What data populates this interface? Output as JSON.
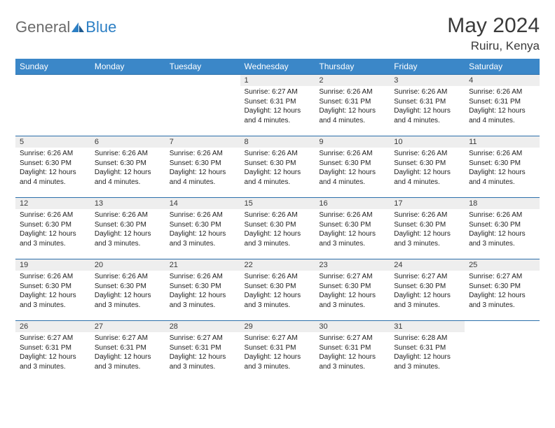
{
  "logo": {
    "text1": "General",
    "text2": "Blue"
  },
  "header": {
    "title": "May 2024",
    "location": "Ruiru, Kenya"
  },
  "colors": {
    "header_bg": "#3b87c8",
    "header_text": "#ffffff",
    "daynum_bg": "#eeeeee",
    "row_border": "#2b6faa",
    "logo_gray": "#6b6b6b",
    "logo_blue": "#2c7fc4"
  },
  "weekdays": [
    "Sunday",
    "Monday",
    "Tuesday",
    "Wednesday",
    "Thursday",
    "Friday",
    "Saturday"
  ],
  "weeks": [
    [
      {
        "day": "",
        "sunrise": "",
        "sunset": "",
        "daylight1": "",
        "daylight2": ""
      },
      {
        "day": "",
        "sunrise": "",
        "sunset": "",
        "daylight1": "",
        "daylight2": ""
      },
      {
        "day": "",
        "sunrise": "",
        "sunset": "",
        "daylight1": "",
        "daylight2": ""
      },
      {
        "day": "1",
        "sunrise": "Sunrise: 6:27 AM",
        "sunset": "Sunset: 6:31 PM",
        "daylight1": "Daylight: 12 hours",
        "daylight2": "and 4 minutes."
      },
      {
        "day": "2",
        "sunrise": "Sunrise: 6:26 AM",
        "sunset": "Sunset: 6:31 PM",
        "daylight1": "Daylight: 12 hours",
        "daylight2": "and 4 minutes."
      },
      {
        "day": "3",
        "sunrise": "Sunrise: 6:26 AM",
        "sunset": "Sunset: 6:31 PM",
        "daylight1": "Daylight: 12 hours",
        "daylight2": "and 4 minutes."
      },
      {
        "day": "4",
        "sunrise": "Sunrise: 6:26 AM",
        "sunset": "Sunset: 6:31 PM",
        "daylight1": "Daylight: 12 hours",
        "daylight2": "and 4 minutes."
      }
    ],
    [
      {
        "day": "5",
        "sunrise": "Sunrise: 6:26 AM",
        "sunset": "Sunset: 6:30 PM",
        "daylight1": "Daylight: 12 hours",
        "daylight2": "and 4 minutes."
      },
      {
        "day": "6",
        "sunrise": "Sunrise: 6:26 AM",
        "sunset": "Sunset: 6:30 PM",
        "daylight1": "Daylight: 12 hours",
        "daylight2": "and 4 minutes."
      },
      {
        "day": "7",
        "sunrise": "Sunrise: 6:26 AM",
        "sunset": "Sunset: 6:30 PM",
        "daylight1": "Daylight: 12 hours",
        "daylight2": "and 4 minutes."
      },
      {
        "day": "8",
        "sunrise": "Sunrise: 6:26 AM",
        "sunset": "Sunset: 6:30 PM",
        "daylight1": "Daylight: 12 hours",
        "daylight2": "and 4 minutes."
      },
      {
        "day": "9",
        "sunrise": "Sunrise: 6:26 AM",
        "sunset": "Sunset: 6:30 PM",
        "daylight1": "Daylight: 12 hours",
        "daylight2": "and 4 minutes."
      },
      {
        "day": "10",
        "sunrise": "Sunrise: 6:26 AM",
        "sunset": "Sunset: 6:30 PM",
        "daylight1": "Daylight: 12 hours",
        "daylight2": "and 4 minutes."
      },
      {
        "day": "11",
        "sunrise": "Sunrise: 6:26 AM",
        "sunset": "Sunset: 6:30 PM",
        "daylight1": "Daylight: 12 hours",
        "daylight2": "and 4 minutes."
      }
    ],
    [
      {
        "day": "12",
        "sunrise": "Sunrise: 6:26 AM",
        "sunset": "Sunset: 6:30 PM",
        "daylight1": "Daylight: 12 hours",
        "daylight2": "and 3 minutes."
      },
      {
        "day": "13",
        "sunrise": "Sunrise: 6:26 AM",
        "sunset": "Sunset: 6:30 PM",
        "daylight1": "Daylight: 12 hours",
        "daylight2": "and 3 minutes."
      },
      {
        "day": "14",
        "sunrise": "Sunrise: 6:26 AM",
        "sunset": "Sunset: 6:30 PM",
        "daylight1": "Daylight: 12 hours",
        "daylight2": "and 3 minutes."
      },
      {
        "day": "15",
        "sunrise": "Sunrise: 6:26 AM",
        "sunset": "Sunset: 6:30 PM",
        "daylight1": "Daylight: 12 hours",
        "daylight2": "and 3 minutes."
      },
      {
        "day": "16",
        "sunrise": "Sunrise: 6:26 AM",
        "sunset": "Sunset: 6:30 PM",
        "daylight1": "Daylight: 12 hours",
        "daylight2": "and 3 minutes."
      },
      {
        "day": "17",
        "sunrise": "Sunrise: 6:26 AM",
        "sunset": "Sunset: 6:30 PM",
        "daylight1": "Daylight: 12 hours",
        "daylight2": "and 3 minutes."
      },
      {
        "day": "18",
        "sunrise": "Sunrise: 6:26 AM",
        "sunset": "Sunset: 6:30 PM",
        "daylight1": "Daylight: 12 hours",
        "daylight2": "and 3 minutes."
      }
    ],
    [
      {
        "day": "19",
        "sunrise": "Sunrise: 6:26 AM",
        "sunset": "Sunset: 6:30 PM",
        "daylight1": "Daylight: 12 hours",
        "daylight2": "and 3 minutes."
      },
      {
        "day": "20",
        "sunrise": "Sunrise: 6:26 AM",
        "sunset": "Sunset: 6:30 PM",
        "daylight1": "Daylight: 12 hours",
        "daylight2": "and 3 minutes."
      },
      {
        "day": "21",
        "sunrise": "Sunrise: 6:26 AM",
        "sunset": "Sunset: 6:30 PM",
        "daylight1": "Daylight: 12 hours",
        "daylight2": "and 3 minutes."
      },
      {
        "day": "22",
        "sunrise": "Sunrise: 6:26 AM",
        "sunset": "Sunset: 6:30 PM",
        "daylight1": "Daylight: 12 hours",
        "daylight2": "and 3 minutes."
      },
      {
        "day": "23",
        "sunrise": "Sunrise: 6:27 AM",
        "sunset": "Sunset: 6:30 PM",
        "daylight1": "Daylight: 12 hours",
        "daylight2": "and 3 minutes."
      },
      {
        "day": "24",
        "sunrise": "Sunrise: 6:27 AM",
        "sunset": "Sunset: 6:30 PM",
        "daylight1": "Daylight: 12 hours",
        "daylight2": "and 3 minutes."
      },
      {
        "day": "25",
        "sunrise": "Sunrise: 6:27 AM",
        "sunset": "Sunset: 6:30 PM",
        "daylight1": "Daylight: 12 hours",
        "daylight2": "and 3 minutes."
      }
    ],
    [
      {
        "day": "26",
        "sunrise": "Sunrise: 6:27 AM",
        "sunset": "Sunset: 6:31 PM",
        "daylight1": "Daylight: 12 hours",
        "daylight2": "and 3 minutes."
      },
      {
        "day": "27",
        "sunrise": "Sunrise: 6:27 AM",
        "sunset": "Sunset: 6:31 PM",
        "daylight1": "Daylight: 12 hours",
        "daylight2": "and 3 minutes."
      },
      {
        "day": "28",
        "sunrise": "Sunrise: 6:27 AM",
        "sunset": "Sunset: 6:31 PM",
        "daylight1": "Daylight: 12 hours",
        "daylight2": "and 3 minutes."
      },
      {
        "day": "29",
        "sunrise": "Sunrise: 6:27 AM",
        "sunset": "Sunset: 6:31 PM",
        "daylight1": "Daylight: 12 hours",
        "daylight2": "and 3 minutes."
      },
      {
        "day": "30",
        "sunrise": "Sunrise: 6:27 AM",
        "sunset": "Sunset: 6:31 PM",
        "daylight1": "Daylight: 12 hours",
        "daylight2": "and 3 minutes."
      },
      {
        "day": "31",
        "sunrise": "Sunrise: 6:28 AM",
        "sunset": "Sunset: 6:31 PM",
        "daylight1": "Daylight: 12 hours",
        "daylight2": "and 3 minutes."
      },
      {
        "day": "",
        "sunrise": "",
        "sunset": "",
        "daylight1": "",
        "daylight2": ""
      }
    ]
  ]
}
